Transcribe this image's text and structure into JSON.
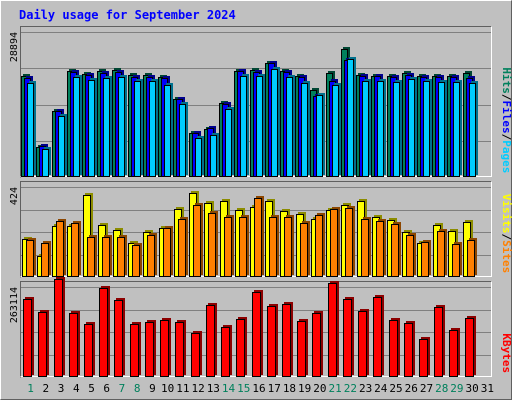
{
  "chart_data": {
    "type": "bar",
    "title": "Daily usage for September 2024",
    "x": [
      "1",
      "2",
      "3",
      "4",
      "5",
      "6",
      "7",
      "8",
      "9",
      "10",
      "11",
      "12",
      "13",
      "14",
      "15",
      "16",
      "17",
      "18",
      "19",
      "20",
      "21",
      "22",
      "23",
      "24",
      "25",
      "26",
      "27",
      "28",
      "29",
      "30",
      "31"
    ],
    "weekend_days": [
      "1",
      "7",
      "8",
      "14",
      "15",
      "21",
      "22",
      "28",
      "29"
    ],
    "panels": [
      {
        "name": "hits-files-pages",
        "ytick": "28894",
        "ymax": 28894,
        "side_labels": [
          "Pages",
          "/",
          "Files",
          "/",
          "Hits"
        ],
        "series": [
          {
            "name": "Hits",
            "color": "#00805c",
            "values": [
              20140,
              6070,
              13180,
              21140,
              20610,
              21060,
              21300,
              20310,
              20240,
              19850,
              15560,
              8850,
              9550,
              14740,
              21180,
              21240,
              22620,
              21190,
              20070,
              17300,
              20690,
              25420,
              20390,
              20170,
              20120,
              20680,
              20200,
              20030,
              20080,
              20640,
              0
            ]
          },
          {
            "name": "Files",
            "color": "#0000ff",
            "values": [
              19780,
              6270,
              13250,
              20900,
              20270,
              20640,
              20870,
              20000,
              19990,
              19720,
              15590,
              8830,
              9790,
              14640,
              21070,
              20940,
              22640,
              20930,
              19850,
              16100,
              19070,
              23250,
              20210,
              20080,
              19990,
              20380,
              19920,
              19890,
              19830,
              19700,
              0
            ]
          },
          {
            "name": "Pages",
            "color": "#00ccff",
            "values": [
              18710,
              5600,
              12160,
              19940,
              19390,
              19720,
              19960,
              19120,
              19080,
              18420,
              14610,
              7780,
              8370,
              13620,
              20090,
              20100,
              21510,
              19860,
              18790,
              16270,
              18280,
              23580,
              19200,
              19120,
              19020,
              19500,
              19040,
              18920,
              18900,
              18780,
              0
            ]
          }
        ]
      },
      {
        "name": "visits-sites",
        "ytick": "424",
        "ymax": 424,
        "side_labels": [
          "Sites",
          "/",
          "Visits"
        ],
        "series": [
          {
            "name": "Visits",
            "color": "#ffff00",
            "values": [
              180,
              100,
              240,
              240,
              385,
              245,
              220,
              160,
              210,
              230,
              320,
              395,
              350,
              360,
              315,
              330,
              360,
              310,
              295,
              275,
              315,
              340,
              360,
              285,
              270,
              210,
              160,
              245,
              215,
              260,
              0
            ]
          },
          {
            "name": "Sites",
            "color": "#ff8000",
            "values": [
              175,
              160,
              265,
              255,
              190,
              190,
              190,
              150,
              200,
              230,
              275,
              340,
              300,
              285,
              285,
              370,
              285,
              285,
              255,
              290,
              320,
              325,
              275,
              265,
              250,
              200,
              165,
              215,
              155,
              175,
              0
            ]
          }
        ]
      },
      {
        "name": "kbytes",
        "ytick": "263114",
        "ymax": 263114,
        "side_labels": [
          "KBytes"
        ],
        "series": [
          {
            "name": "KBytes",
            "color": "#ff0000",
            "values": [
              226700,
              191100,
              287300,
              187900,
              155800,
              260300,
              224000,
              154200,
              161100,
              165200,
              160700,
              128000,
              209800,
              147600,
              168400,
              247400,
              208000,
              212100,
              162700,
              187700,
              273900,
              227200,
              193200,
              233600,
              167100,
              159200,
              110600,
              205700,
              136900,
              171900,
              0
            ]
          }
        ]
      }
    ]
  }
}
